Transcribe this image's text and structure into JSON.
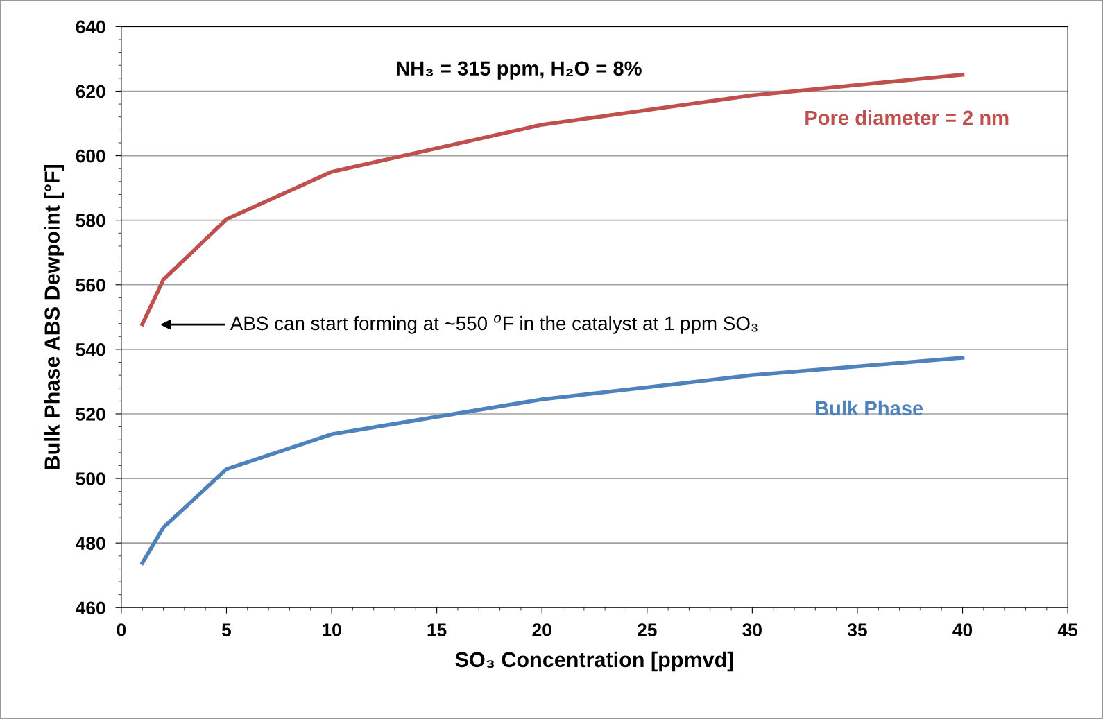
{
  "chart_data": {
    "type": "line",
    "xlabel": "SO₃ Concentration [ppmvd]",
    "ylabel": "Bulk Phase ABS Dewpoint [°F]",
    "x": [
      1,
      2,
      5,
      10,
      20,
      30,
      40
    ],
    "series": [
      {
        "name": "Pore diameter = 2 nm",
        "color": "#c0504d",
        "values": [
          547.8,
          561.6,
          580.3,
          595,
          609.6,
          618.7,
          625.1
        ]
      },
      {
        "name": "Bulk Phase",
        "color": "#4f81bd",
        "values": [
          473.8,
          484.8,
          502.9,
          513.7,
          524.5,
          532,
          537.4
        ]
      }
    ],
    "annotations": [
      "NH₃ = 315 ppm, H₂O = 8%",
      "ABS can start forming at ~550 $^{o}$F in the catalyst at 1 ppm SO₃"
    ],
    "xlim": [
      0,
      45
    ],
    "xticks": [
      0,
      5,
      10,
      15,
      20,
      25,
      30,
      35,
      40,
      45
    ],
    "ylim": [
      460,
      640
    ],
    "yticks": [
      460,
      480,
      500,
      520,
      540,
      560,
      580,
      600,
      620,
      640
    ],
    "grid": "y",
    "legend": false,
    "marker": "none",
    "line_style": "solid"
  }
}
